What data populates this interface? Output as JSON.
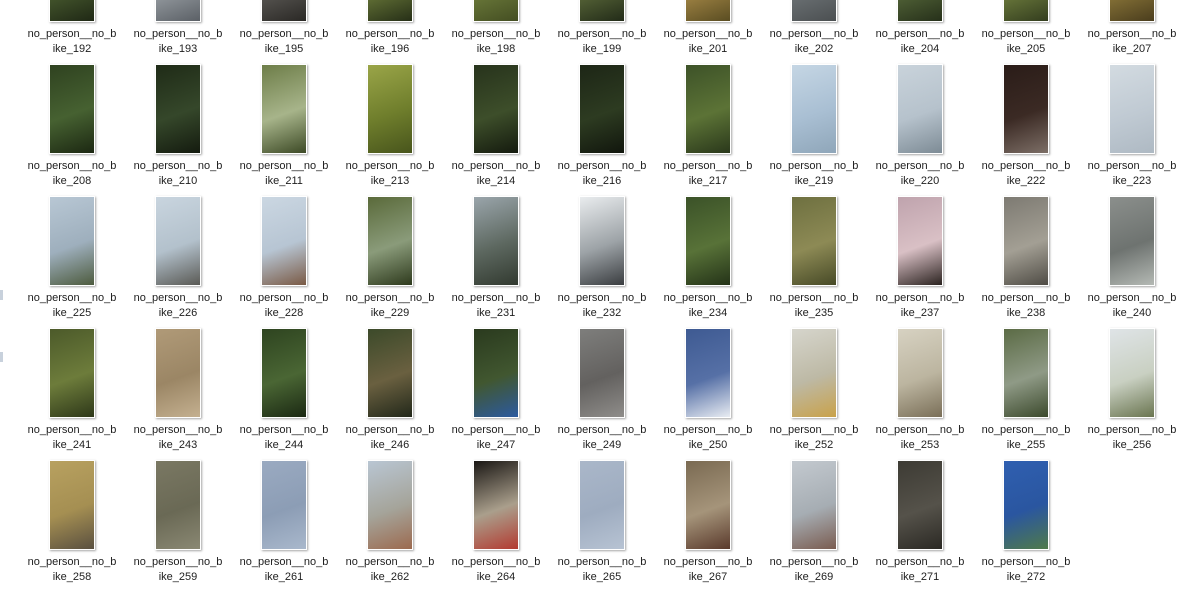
{
  "files": [
    {
      "l1": "no_person__no_b",
      "l2": "ike_192",
      "c": [
        "#2d3a1f",
        "#4a5d30",
        "#1f2815"
      ]
    },
    {
      "l1": "no_person__no_b",
      "l2": "ike_193",
      "c": [
        "#d8dde0",
        "#9aa0a5",
        "#5b6066"
      ]
    },
    {
      "l1": "no_person__no_b",
      "l2": "ike_195",
      "c": [
        "#b9c0c6",
        "#5d5b57",
        "#2a2825"
      ]
    },
    {
      "l1": "no_person__no_b",
      "l2": "ike_196",
      "c": [
        "#3b4a25",
        "#6b7a3a",
        "#262f17"
      ]
    },
    {
      "l1": "no_person__no_b",
      "l2": "ike_198",
      "c": [
        "#a8b26a",
        "#6e7d3c",
        "#444e22"
      ]
    },
    {
      "l1": "no_person__no_b",
      "l2": "ike_199",
      "c": [
        "#38452a",
        "#5d6b3b",
        "#222b18"
      ]
    },
    {
      "l1": "no_person__no_b",
      "l2": "ike_201",
      "c": [
        "#7a6a35",
        "#a88a48",
        "#5a4d22"
      ]
    },
    {
      "l1": "no_person__no_b",
      "l2": "ike_202",
      "c": [
        "#9aa0a2",
        "#6f7578",
        "#4b4f51"
      ]
    },
    {
      "l1": "no_person__no_b",
      "l2": "ike_204",
      "c": [
        "#3a4a26",
        "#56683a",
        "#26301a"
      ]
    },
    {
      "l1": "no_person__no_b",
      "l2": "ike_205",
      "c": [
        "#4d5a30",
        "#71803f",
        "#333d1e"
      ]
    },
    {
      "l1": "no_person__no_b",
      "l2": "ike_207",
      "c": [
        "#6b5a2a",
        "#8f7a3b",
        "#4a3d1d"
      ]
    },
    {
      "l1": "no_person__no_b",
      "l2": "ike_208",
      "c": [
        "#2f4220",
        "#466131",
        "#1c2812"
      ]
    },
    {
      "l1": "no_person__no_b",
      "l2": "ike_210",
      "c": [
        "#1f2b17",
        "#35472a",
        "#141b0f"
      ]
    },
    {
      "l1": "no_person__no_b",
      "l2": "ike_211",
      "c": [
        "#6d7d48",
        "#a7b48a",
        "#3d4a26"
      ]
    },
    {
      "l1": "no_person__no_b",
      "l2": "ike_213",
      "c": [
        "#9aa548",
        "#6f7e2c",
        "#48551c"
      ]
    },
    {
      "l1": "no_person__no_b",
      "l2": "ike_214",
      "c": [
        "#27331c",
        "#3d4e2a",
        "#141a0e"
      ]
    },
    {
      "l1": "no_person__no_b",
      "l2": "ike_216",
      "c": [
        "#1d2616",
        "#2d3b21",
        "#11160d"
      ]
    },
    {
      "l1": "no_person__no_b",
      "l2": "ike_217",
      "c": [
        "#3d5228",
        "#5c7336",
        "#2a381b"
      ]
    },
    {
      "l1": "no_person__no_b",
      "l2": "ike_219",
      "c": [
        "#c5d6e4",
        "#a9bfd3",
        "#8fa6b9"
      ]
    },
    {
      "l1": "no_person__no_b",
      "l2": "ike_220",
      "c": [
        "#c9d3db",
        "#b6c2cc",
        "#7d8b95"
      ]
    },
    {
      "l1": "no_person__no_b",
      "l2": "ike_222",
      "c": [
        "#2a1c18",
        "#3b2a24",
        "#7c6e66"
      ]
    },
    {
      "l1": "no_person__no_b",
      "l2": "ike_223",
      "c": [
        "#d3dbe1",
        "#c0cad3",
        "#aeb9c3"
      ]
    },
    {
      "l1": "no_person__no_b",
      "l2": "ike_225",
      "c": [
        "#b8c7d4",
        "#9eafbd",
        "#4d5b3e"
      ]
    },
    {
      "l1": "no_person__no_b",
      "l2": "ike_226",
      "c": [
        "#c9d5df",
        "#b3c1cc",
        "#5a5a55"
      ]
    },
    {
      "l1": "no_person__no_b",
      "l2": "ike_228",
      "c": [
        "#cbd7e2",
        "#b7c5d3",
        "#7a5a45"
      ]
    },
    {
      "l1": "no_person__no_b",
      "l2": "ike_229",
      "c": [
        "#5a6a3a",
        "#8a9b7a",
        "#2e3a1d"
      ]
    },
    {
      "l1": "no_person__no_b",
      "l2": "ike_231",
      "c": [
        "#9aa5ab",
        "#5d6860",
        "#323a30"
      ]
    },
    {
      "l1": "no_person__no_b",
      "l2": "ike_232",
      "c": [
        "#e9ecee",
        "#9da3a7",
        "#3a3d40"
      ]
    },
    {
      "l1": "no_person__no_b",
      "l2": "ike_234",
      "c": [
        "#3b5228",
        "#587238",
        "#243318"
      ]
    },
    {
      "l1": "no_person__no_b",
      "l2": "ike_235",
      "c": [
        "#6e7040",
        "#8d8a55",
        "#474a27"
      ]
    },
    {
      "l1": "no_person__no_b",
      "l2": "ike_237",
      "c": [
        "#bfa3ad",
        "#d9c0c5",
        "#2b2320"
      ]
    },
    {
      "l1": "no_person__no_b",
      "l2": "ike_238",
      "c": [
        "#7d7a72",
        "#a39f94",
        "#4f4c45"
      ]
    },
    {
      "l1": "no_person__no_b",
      "l2": "ike_240",
      "c": [
        "#8b8f8c",
        "#6e7370",
        "#b4b9b4"
      ]
    },
    {
      "l1": "no_person__no_b",
      "l2": "ike_241",
      "c": [
        "#4c5a2a",
        "#6d7c3b",
        "#2e3819"
      ]
    },
    {
      "l1": "no_person__no_b",
      "l2": "ike_243",
      "c": [
        "#b09a78",
        "#9b8665",
        "#c4b090"
      ]
    },
    {
      "l1": "no_person__no_b",
      "l2": "ike_244",
      "c": [
        "#2e4420",
        "#4a6634",
        "#1b2913"
      ]
    },
    {
      "l1": "no_person__no_b",
      "l2": "ike_246",
      "c": [
        "#3c4a2a",
        "#6a6040",
        "#22281a"
      ]
    },
    {
      "l1": "no_person__no_b",
      "l2": "ike_247",
      "c": [
        "#2a3a1e",
        "#415730",
        "#2c5aa0"
      ]
    },
    {
      "l1": "no_person__no_b",
      "l2": "ike_249",
      "c": [
        "#7e7e7c",
        "#63615f",
        "#8f8d8a"
      ]
    },
    {
      "l1": "no_person__no_b",
      "l2": "ike_250",
      "c": [
        "#3e5a92",
        "#5670a6",
        "#e8ecf2"
      ]
    },
    {
      "l1": "no_person__no_b",
      "l2": "ike_252",
      "c": [
        "#d6d5cc",
        "#bdb9a5",
        "#c9a24a"
      ]
    },
    {
      "l1": "no_person__no_b",
      "l2": "ike_253",
      "c": [
        "#d7d2c2",
        "#bcb5a0",
        "#7a6f58"
      ]
    },
    {
      "l1": "no_person__no_b",
      "l2": "ike_255",
      "c": [
        "#5b6b45",
        "#8f9a86",
        "#3c4a2d"
      ]
    },
    {
      "l1": "no_person__no_b",
      "l2": "ike_256",
      "c": [
        "#dfe4e7",
        "#c9d0c2",
        "#6a7550"
      ]
    },
    {
      "l1": "no_person__no_b",
      "l2": "ike_258",
      "c": [
        "#b8a160",
        "#a58f52",
        "#5a5040"
      ]
    },
    {
      "l1": "no_person__no_b",
      "l2": "ike_259",
      "c": [
        "#7a7863",
        "#6a6955",
        "#8a8873"
      ]
    },
    {
      "l1": "no_person__no_b",
      "l2": "ike_261",
      "c": [
        "#9aaac1",
        "#8c9db5",
        "#a9b8cc"
      ]
    },
    {
      "l1": "no_person__no_b",
      "l2": "ike_262",
      "c": [
        "#b9c6d3",
        "#a5a49a",
        "#9c6a4f"
      ]
    },
    {
      "l1": "no_person__no_b",
      "l2": "ike_264",
      "c": [
        "#1a1714",
        "#aa9f8c",
        "#b33a30"
      ]
    },
    {
      "l1": "no_person__no_b",
      "l2": "ike_265",
      "c": [
        "#aab7c9",
        "#9eacc0",
        "#b7c3d3"
      ]
    },
    {
      "l1": "no_person__no_b",
      "l2": "ike_267",
      "c": [
        "#7a6a52",
        "#a5947a",
        "#5a3a2c"
      ]
    },
    {
      "l1": "no_person__no_b",
      "l2": "ike_269",
      "c": [
        "#c3c9cf",
        "#a6adb3",
        "#7a5c50"
      ]
    },
    {
      "l1": "no_person__no_b",
      "l2": "ike_271",
      "c": [
        "#3d3b34",
        "#55524a",
        "#2b2924"
      ]
    },
    {
      "l1": "no_person__no_b",
      "l2": "ike_272",
      "c": [
        "#2f5fb0",
        "#2a56a0",
        "#4f7a4a"
      ]
    }
  ]
}
